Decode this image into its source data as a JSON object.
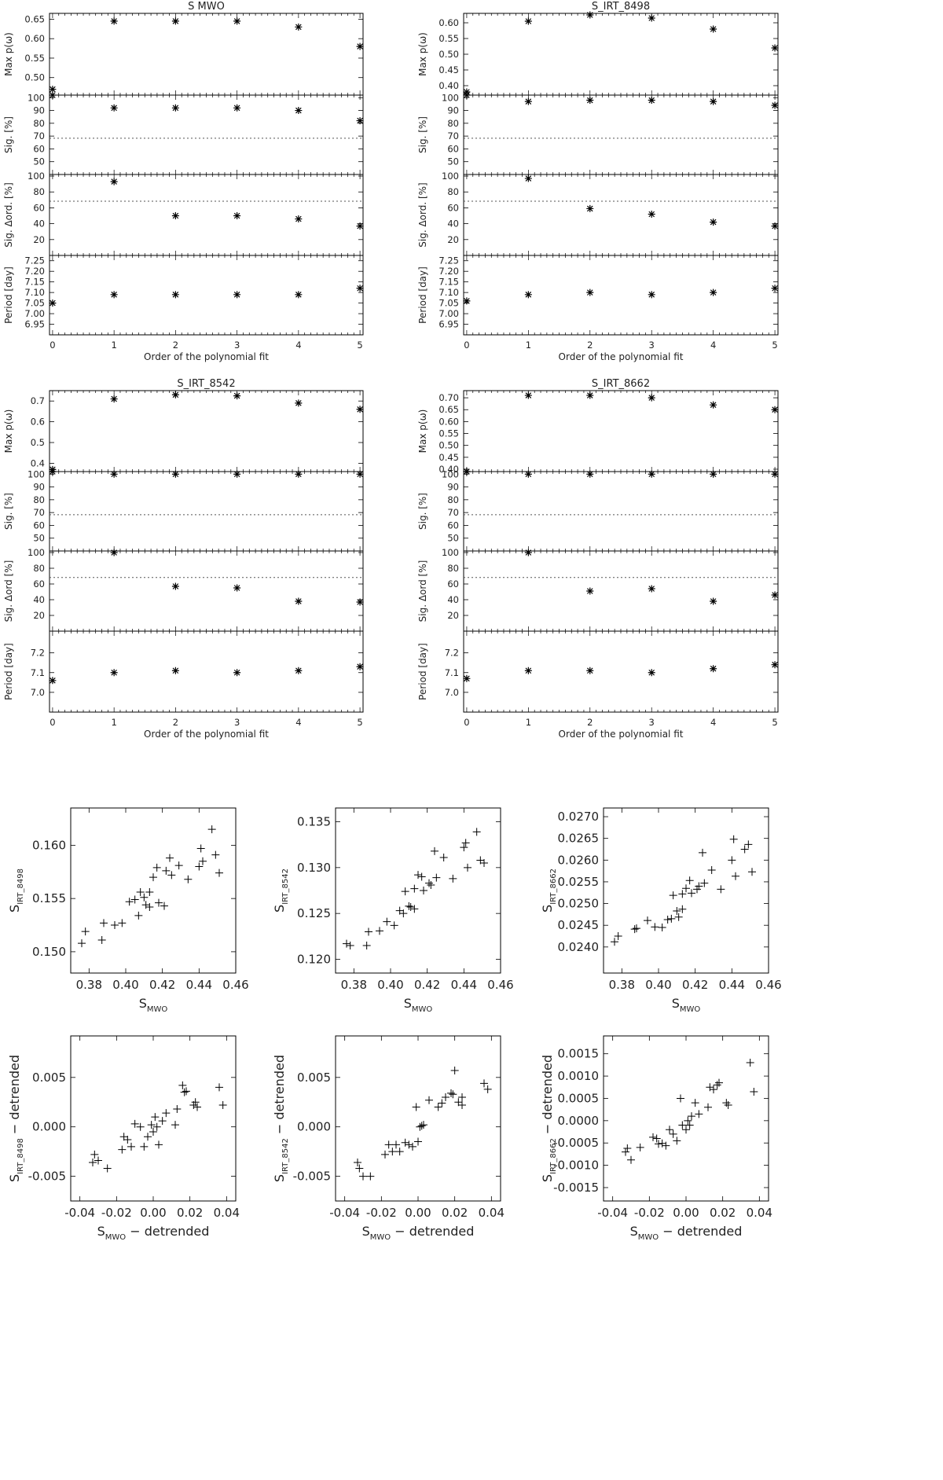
{
  "chart_data": [
    {
      "type": "scatter",
      "title": "S MWO",
      "xlabel": "Order of the polynomial fit",
      "xlim": [
        -0.05,
        5.05
      ],
      "xticks": [
        0,
        1,
        2,
        3,
        4,
        5
      ],
      "panels": [
        {
          "ylabel": "Max p(ω)",
          "ylim": [
            0.455,
            0.665
          ],
          "yticks": [
            0.5,
            0.55,
            0.6,
            0.65
          ],
          "decimals": 2,
          "values": [
            0.47,
            0.645,
            0.645,
            0.645,
            0.63,
            0.58
          ]
        },
        {
          "ylabel": "Sig. [%]",
          "ylim": [
            40,
            102
          ],
          "yticks": [
            50,
            60,
            70,
            80,
            90,
            100
          ],
          "decimals": 0,
          "threshold": 68.3,
          "values": [
            102,
            92,
            92,
            92,
            90,
            82
          ]
        },
        {
          "ylabel": "Sig. Δord. [%]",
          "ylim": [
            0,
            102
          ],
          "yticks": [
            20,
            40,
            60,
            80,
            100
          ],
          "decimals": 0,
          "threshold": 68.3,
          "values": [
            null,
            93,
            50,
            50,
            46,
            37
          ]
        },
        {
          "ylabel": "Period [day]",
          "ylim": [
            6.9,
            7.275
          ],
          "yticks": [
            6.95,
            7.0,
            7.05,
            7.1,
            7.15,
            7.2,
            7.25
          ],
          "decimals": 2,
          "values": [
            7.05,
            7.09,
            7.09,
            7.09,
            7.09,
            7.12
          ]
        }
      ]
    },
    {
      "type": "scatter",
      "title": "S_IRT_8498",
      "xlabel": "Order of the polynomial fit",
      "xlim": [
        -0.05,
        5.05
      ],
      "xticks": [
        0,
        1,
        2,
        3,
        4,
        5
      ],
      "panels": [
        {
          "ylabel": "Max p(ω)",
          "ylim": [
            0.37,
            0.63
          ],
          "yticks": [
            0.4,
            0.45,
            0.5,
            0.55,
            0.6
          ],
          "decimals": 2,
          "values": [
            0.38,
            0.605,
            0.625,
            0.615,
            0.58,
            0.52
          ]
        },
        {
          "ylabel": "Sig. [%]",
          "ylim": [
            40,
            102
          ],
          "yticks": [
            50,
            60,
            70,
            80,
            90,
            100
          ],
          "decimals": 0,
          "threshold": 68.3,
          "values": [
            102,
            97,
            98,
            98,
            97,
            94
          ]
        },
        {
          "ylabel": "Sig. Δord. [%]",
          "ylim": [
            0,
            102
          ],
          "yticks": [
            20,
            40,
            60,
            80,
            100
          ],
          "decimals": 0,
          "threshold": 68.3,
          "values": [
            null,
            97,
            59,
            52,
            42,
            37
          ]
        },
        {
          "ylabel": "Period [day]",
          "ylim": [
            6.9,
            7.275
          ],
          "yticks": [
            6.95,
            7.0,
            7.05,
            7.1,
            7.15,
            7.2,
            7.25
          ],
          "decimals": 2,
          "values": [
            7.06,
            7.09,
            7.1,
            7.09,
            7.1,
            7.12
          ]
        }
      ]
    },
    {
      "type": "scatter",
      "title": "S_IRT_8542",
      "xlabel": "Order of the polynomial fit",
      "xlim": [
        -0.05,
        5.05
      ],
      "xticks": [
        0,
        1,
        2,
        3,
        4,
        5
      ],
      "panels": [
        {
          "ylabel": "Max p(ω)",
          "ylim": [
            0.36,
            0.75
          ],
          "yticks": [
            0.4,
            0.5,
            0.6,
            0.7
          ],
          "decimals": 1,
          "values": [
            0.37,
            0.71,
            0.73,
            0.725,
            0.69,
            0.66
          ]
        },
        {
          "ylabel": "Sig. [%]",
          "ylim": [
            40,
            102
          ],
          "yticks": [
            50,
            60,
            70,
            80,
            90,
            100
          ],
          "decimals": 0,
          "threshold": 68.3,
          "values": [
            102,
            100,
            100,
            100,
            100,
            100
          ]
        },
        {
          "ylabel": "Sig. Δord [%]",
          "ylim": [
            0,
            102
          ],
          "yticks": [
            20,
            40,
            60,
            80,
            100
          ],
          "decimals": 0,
          "threshold": 68.3,
          "values": [
            null,
            100,
            57,
            55,
            38,
            37
          ]
        },
        {
          "ylabel": "Period [day]",
          "ylim": [
            6.9,
            7.31
          ],
          "yticks": [
            7.0,
            7.1,
            7.2
          ],
          "decimals": 1,
          "values": [
            7.06,
            7.1,
            7.11,
            7.1,
            7.11,
            7.13
          ]
        }
      ]
    },
    {
      "type": "scatter",
      "title": "S_IRT_8662",
      "xlabel": "Order of the polynomial fit",
      "xlim": [
        -0.05,
        5.05
      ],
      "xticks": [
        0,
        1,
        2,
        3,
        4,
        5
      ],
      "panels": [
        {
          "ylabel": "Max p(ω)",
          "ylim": [
            0.39,
            0.73
          ],
          "yticks": [
            0.4,
            0.45,
            0.5,
            0.55,
            0.6,
            0.65,
            0.7
          ],
          "decimals": 2,
          "values": [
            0.39,
            0.71,
            0.71,
            0.7,
            0.67,
            0.65
          ]
        },
        {
          "ylabel": "Sig. [%]",
          "ylim": [
            40,
            102
          ],
          "yticks": [
            50,
            60,
            70,
            80,
            90,
            100
          ],
          "decimals": 0,
          "threshold": 68.3,
          "values": [
            102,
            100,
            100,
            100,
            100,
            100
          ]
        },
        {
          "ylabel": "Sig. Δord [%]",
          "ylim": [
            0,
            102
          ],
          "yticks": [
            20,
            40,
            60,
            80,
            100
          ],
          "decimals": 0,
          "threshold": 68.3,
          "values": [
            null,
            100,
            51,
            54,
            38,
            46
          ]
        },
        {
          "ylabel": "Period [day]",
          "ylim": [
            6.9,
            7.31
          ],
          "yticks": [
            7.0,
            7.1,
            7.2
          ],
          "decimals": 1,
          "values": [
            7.07,
            7.11,
            7.11,
            7.1,
            7.12,
            7.14
          ]
        }
      ]
    },
    {
      "type": "scatter",
      "ylabel": "S",
      "ylabel_sub": "IRT_8498",
      "xlabel": "S",
      "xlabel_sub": "MWO",
      "xlabel_tail": "",
      "xlim": [
        0.37,
        0.46
      ],
      "xticks": [
        0.38,
        0.4,
        0.42,
        0.44,
        0.46
      ],
      "xdec": 2,
      "ylim": [
        0.148,
        0.1635
      ],
      "yticks": [
        0.15,
        0.155,
        0.16
      ],
      "ydec": 3,
      "x": [
        0.376,
        0.378,
        0.388,
        0.387,
        0.394,
        0.398,
        0.402,
        0.405,
        0.407,
        0.408,
        0.41,
        0.411,
        0.413,
        0.413,
        0.415,
        0.417,
        0.418,
        0.421,
        0.422,
        0.424,
        0.425,
        0.429,
        0.434,
        0.44,
        0.441,
        0.442,
        0.447,
        0.449,
        0.451
      ],
      "y": [
        0.1508,
        0.1519,
        0.1527,
        0.1511,
        0.1525,
        0.1527,
        0.1547,
        0.1549,
        0.1534,
        0.1556,
        0.1551,
        0.1544,
        0.1542,
        0.1556,
        0.157,
        0.1579,
        0.1546,
        0.1543,
        0.1576,
        0.1588,
        0.1572,
        0.1581,
        0.1568,
        0.158,
        0.1597,
        0.1585,
        0.1615,
        0.1591,
        0.1574
      ]
    },
    {
      "type": "scatter",
      "ylabel": "S",
      "ylabel_sub": "IRT_8542",
      "xlabel": "S",
      "xlabel_sub": "MWO",
      "xlabel_tail": "",
      "xlim": [
        0.37,
        0.46
      ],
      "xticks": [
        0.38,
        0.4,
        0.42,
        0.44,
        0.46
      ],
      "xdec": 2,
      "ylim": [
        0.1185,
        0.1365
      ],
      "yticks": [
        0.12,
        0.125,
        0.13,
        0.135
      ],
      "ydec": 3,
      "x": [
        0.376,
        0.378,
        0.388,
        0.387,
        0.394,
        0.398,
        0.402,
        0.405,
        0.407,
        0.408,
        0.41,
        0.411,
        0.413,
        0.413,
        0.415,
        0.417,
        0.418,
        0.421,
        0.422,
        0.424,
        0.425,
        0.429,
        0.434,
        0.44,
        0.441,
        0.442,
        0.447,
        0.449,
        0.451
      ],
      "y": [
        0.1217,
        0.1215,
        0.123,
        0.1215,
        0.1231,
        0.1241,
        0.1237,
        0.1253,
        0.125,
        0.1274,
        0.1258,
        0.1257,
        0.1255,
        0.1277,
        0.1292,
        0.129,
        0.1275,
        0.1283,
        0.1281,
        0.1318,
        0.1289,
        0.1311,
        0.1288,
        0.1322,
        0.1327,
        0.13,
        0.1339,
        0.1308,
        0.1305
      ]
    },
    {
      "type": "scatter",
      "ylabel": "S",
      "ylabel_sub": "IRT_8662",
      "xlabel": "S",
      "xlabel_sub": "MWO",
      "xlabel_tail": "",
      "xlim": [
        0.37,
        0.46
      ],
      "xticks": [
        0.38,
        0.4,
        0.42,
        0.44,
        0.46
      ],
      "xdec": 2,
      "ylim": [
        0.0234,
        0.0272
      ],
      "yticks": [
        0.024,
        0.0245,
        0.025,
        0.0255,
        0.026,
        0.0265,
        0.027
      ],
      "ydec": 4,
      "x": [
        0.376,
        0.378,
        0.388,
        0.387,
        0.394,
        0.398,
        0.402,
        0.405,
        0.407,
        0.408,
        0.41,
        0.411,
        0.413,
        0.413,
        0.415,
        0.417,
        0.418,
        0.421,
        0.422,
        0.424,
        0.425,
        0.429,
        0.434,
        0.44,
        0.441,
        0.442,
        0.447,
        0.449,
        0.451
      ],
      "y": [
        0.02412,
        0.02425,
        0.02443,
        0.02441,
        0.02461,
        0.02446,
        0.02445,
        0.02463,
        0.02465,
        0.02519,
        0.02483,
        0.02469,
        0.02487,
        0.02522,
        0.02535,
        0.02553,
        0.02524,
        0.02533,
        0.0254,
        0.02617,
        0.02547,
        0.02577,
        0.02533,
        0.026,
        0.02648,
        0.02563,
        0.02625,
        0.02636,
        0.02573
      ]
    },
    {
      "type": "scatter",
      "ylabel": "S",
      "ylabel_sub": "IRT_8498",
      "ylabel_tail": " − detrended",
      "xlabel": "S",
      "xlabel_sub": "MWO",
      "xlabel_tail": " − detrended",
      "xlim": [
        -0.045,
        0.045
      ],
      "xticks": [
        -0.04,
        -0.02,
        0.0,
        0.02,
        0.04
      ],
      "xdec": 2,
      "ylim": [
        -0.0075,
        0.0092
      ],
      "yticks": [
        -0.005,
        0.0,
        0.005
      ],
      "ydec": 3,
      "x": [
        -0.033,
        -0.032,
        -0.03,
        -0.025,
        -0.017,
        -0.016,
        -0.014,
        -0.012,
        -0.01,
        -0.007,
        -0.005,
        -0.003,
        -0.001,
        0.0,
        0.001,
        0.002,
        0.003,
        0.005,
        0.007,
        0.012,
        0.013,
        0.016,
        0.017,
        0.018,
        0.022,
        0.023,
        0.024,
        0.036,
        0.038
      ],
      "y": [
        -0.0036,
        -0.0028,
        -0.0034,
        -0.0042,
        -0.0023,
        -0.001,
        -0.0013,
        -0.002,
        0.0003,
        0.0,
        -0.002,
        -0.001,
        0.0002,
        -0.0005,
        0.001,
        0.0,
        -0.0018,
        0.0006,
        0.0014,
        0.0002,
        0.0018,
        0.0042,
        0.0035,
        0.0036,
        0.0022,
        0.0025,
        0.002,
        0.004,
        0.0022
      ]
    },
    {
      "type": "scatter",
      "ylabel": "S",
      "ylabel_sub": "IRT_8542",
      "ylabel_tail": " − detrended",
      "xlabel": "S",
      "xlabel_sub": "MWO",
      "xlabel_tail": " − detrended",
      "xlim": [
        -0.045,
        0.045
      ],
      "xticks": [
        -0.04,
        -0.02,
        0.0,
        0.02,
        0.04
      ],
      "xdec": 2,
      "ylim": [
        -0.0075,
        0.0092
      ],
      "yticks": [
        -0.005,
        0.0,
        0.005
      ],
      "ydec": 3,
      "x": [
        -0.033,
        -0.032,
        -0.03,
        -0.026,
        -0.018,
        -0.016,
        -0.014,
        -0.012,
        -0.01,
        -0.007,
        -0.005,
        -0.003,
        -0.001,
        0.0,
        0.001,
        0.002,
        0.003,
        0.006,
        0.011,
        0.013,
        0.015,
        0.018,
        0.019,
        0.02,
        0.022,
        0.024,
        0.024,
        0.036,
        0.038
      ],
      "y": [
        -0.0036,
        -0.0042,
        -0.005,
        -0.005,
        -0.0028,
        -0.0018,
        -0.0025,
        -0.0018,
        -0.0025,
        -0.0016,
        -0.0018,
        -0.002,
        0.002,
        -0.0015,
        0.0,
        0.0001,
        0.0002,
        0.0027,
        0.002,
        0.0024,
        0.003,
        0.0034,
        0.0033,
        0.0057,
        0.0025,
        0.003,
        0.0022,
        0.0044,
        0.0038
      ]
    },
    {
      "type": "scatter",
      "ylabel": "S",
      "ylabel_sub": "IRT_8662",
      "ylabel_tail": " − detrended",
      "xlabel": "S",
      "xlabel_sub": "MWO",
      "xlabel_tail": " − detrended",
      "xlim": [
        -0.045,
        0.045
      ],
      "xticks": [
        -0.04,
        -0.02,
        0.0,
        0.02,
        0.04
      ],
      "xdec": 2,
      "ylim": [
        -0.0018,
        0.0019
      ],
      "yticks": [
        -0.0015,
        -0.001,
        -0.0005,
        0.0,
        0.0005,
        0.001,
        0.0015
      ],
      "ydec": 4,
      "x": [
        -0.033,
        -0.032,
        -0.03,
        -0.025,
        -0.018,
        -0.016,
        -0.015,
        -0.013,
        -0.011,
        -0.009,
        -0.007,
        -0.005,
        -0.003,
        -0.002,
        0.0,
        0.001,
        0.002,
        0.003,
        0.005,
        0.007,
        0.012,
        0.013,
        0.015,
        0.017,
        0.018,
        0.022,
        0.023,
        0.035,
        0.037
      ],
      "y": [
        -0.0007,
        -0.00062,
        -0.00088,
        -0.0006,
        -0.00037,
        -0.0004,
        -0.00052,
        -0.00051,
        -0.00056,
        -0.0002,
        -0.0003,
        -0.00045,
        0.0005,
        -0.0001,
        -0.0002,
        0.0,
        -0.0001,
        0.0001,
        0.0004,
        0.00015,
        0.0003,
        0.00075,
        0.0007,
        0.0008,
        0.00085,
        0.0004,
        0.00035,
        0.0013,
        0.00065
      ]
    }
  ]
}
